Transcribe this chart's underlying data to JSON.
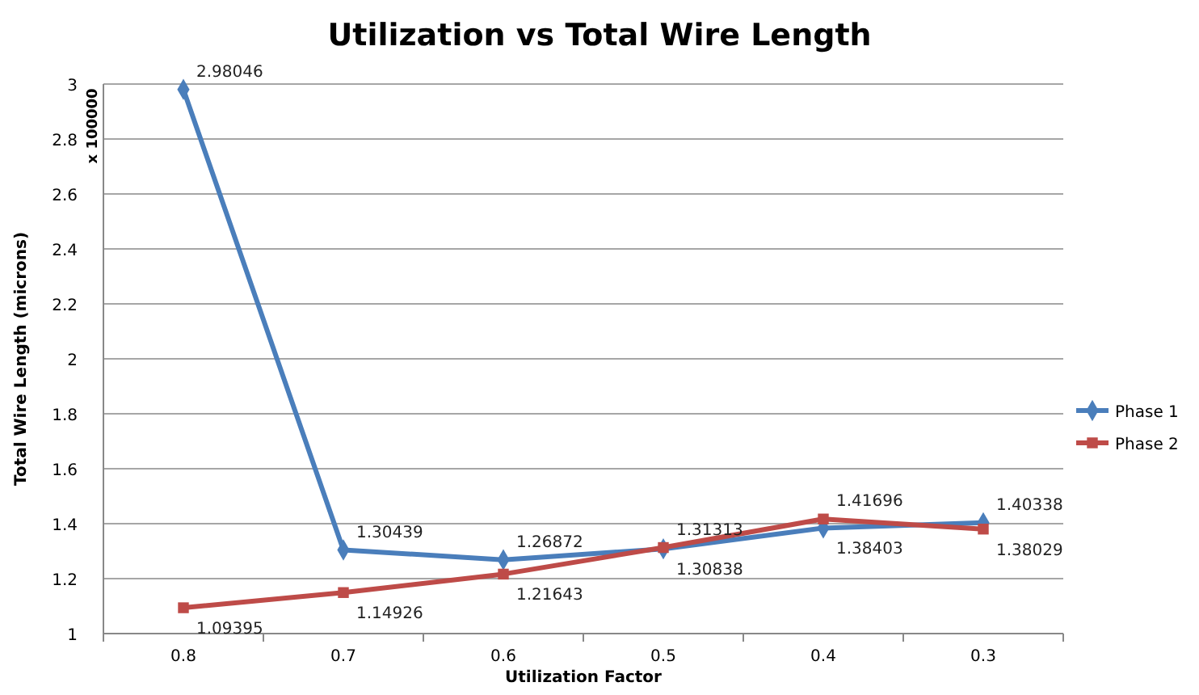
{
  "chart_data": {
    "type": "line",
    "title": "Utilization vs Total Wire Length",
    "xlabel": "Utilization Factor",
    "ylabel": "Total Wire Length (microns)",
    "annotations": [
      "x 100000"
    ],
    "categories": [
      "0.8",
      "0.7",
      "0.6",
      "0.5",
      "0.4",
      "0.3"
    ],
    "series": [
      {
        "name": "Phase 1",
        "color": "#4a7ebb",
        "marker": "diamond",
        "values": [
          2.98046,
          1.30439,
          1.26872,
          1.30838,
          1.38403,
          1.40338
        ]
      },
      {
        "name": "Phase 2",
        "color": "#be4b48",
        "marker": "square",
        "values": [
          1.09395,
          1.14926,
          1.21643,
          1.31313,
          1.41696,
          1.38029
        ]
      }
    ],
    "ylim": [
      1,
      3
    ],
    "yticks": [
      1,
      1.2,
      1.4,
      1.6,
      1.8,
      2,
      2.2,
      2.4,
      2.6,
      2.8,
      3
    ],
    "grid": "y",
    "legend": "right",
    "data_labels": true
  }
}
